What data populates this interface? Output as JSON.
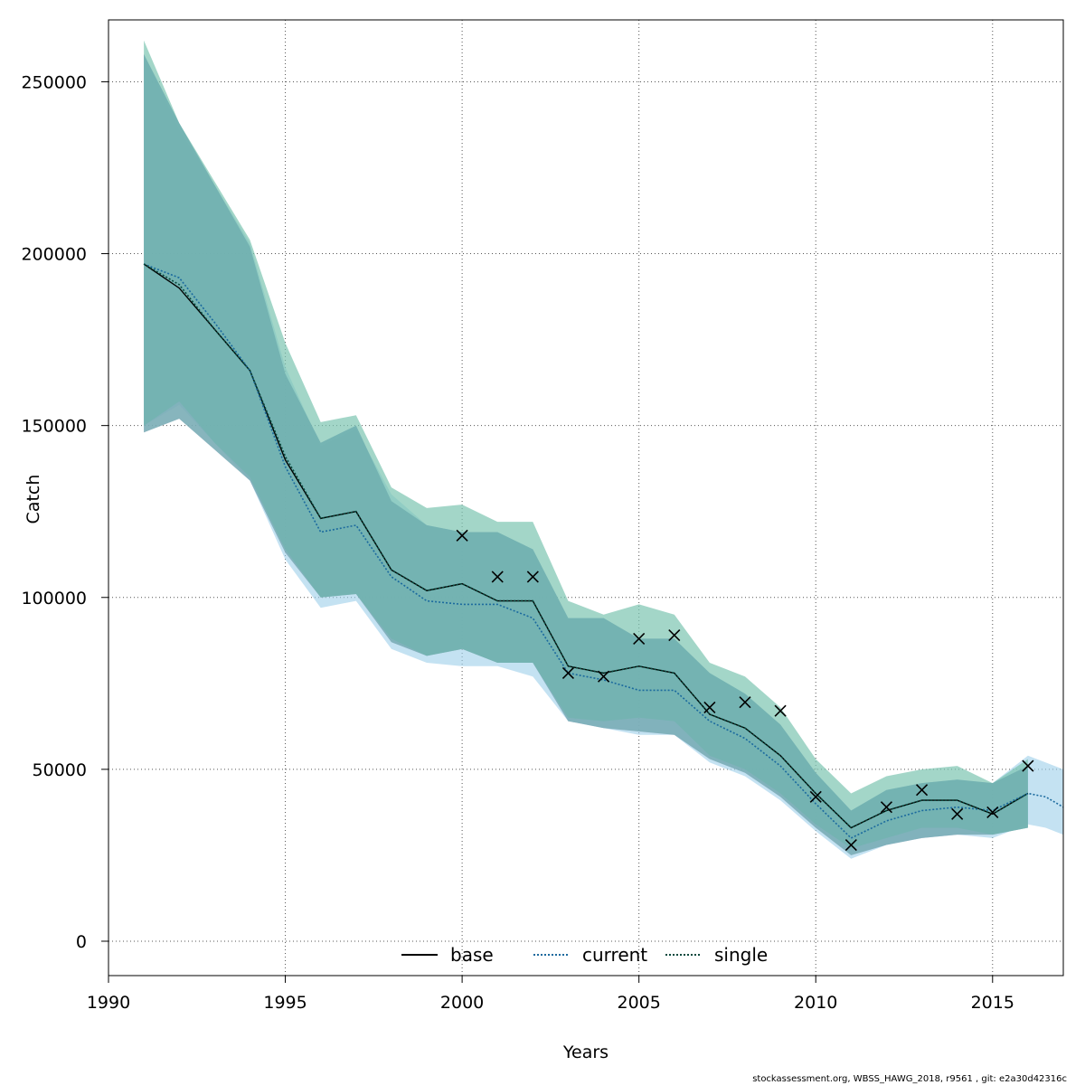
{
  "chart_data": {
    "type": "line",
    "xlabel": "Years",
    "ylabel": "Catch",
    "xlim": [
      1990,
      2017
    ],
    "ylim": [
      -10000,
      268000
    ],
    "x_ticks": [
      "1990",
      "1995",
      "2000",
      "2005",
      "2010",
      "2015"
    ],
    "y_ticks": [
      "0",
      "50000",
      "100000",
      "150000",
      "200000",
      "250000"
    ],
    "grid": true,
    "legend_position": "bottom-center",
    "legend": [
      {
        "label": "base",
        "style": "solid",
        "color": "#000000"
      },
      {
        "label": "current",
        "style": "dotted",
        "color": "#1b6a9e"
      },
      {
        "label": "single",
        "style": "dotted",
        "color": "#08493d"
      }
    ],
    "x": [
      1991,
      1992,
      1993,
      1994,
      1995,
      1996,
      1997,
      1998,
      1999,
      2000,
      2001,
      2002,
      2003,
      2004,
      2005,
      2006,
      2007,
      2008,
      2009,
      2010,
      2011,
      2012,
      2013,
      2014,
      2015,
      2016
    ],
    "series": [
      {
        "name": "base",
        "values": [
          197000,
          190000,
          178000,
          166000,
          140000,
          123000,
          125000,
          108000,
          102000,
          104000,
          99000,
          99000,
          80000,
          78000,
          80000,
          78000,
          66000,
          62000,
          54000,
          43000,
          33000,
          38000,
          41000,
          41000,
          37000,
          43000
        ],
        "lower": [
          148000,
          152000,
          143000,
          134000,
          113000,
          100000,
          101000,
          87000,
          83000,
          85000,
          81000,
          81000,
          64000,
          62000,
          61000,
          60000,
          53000,
          49000,
          42000,
          33000,
          25000,
          28000,
          30000,
          31000,
          31000,
          33000
        ],
        "upper": [
          258000,
          238000,
          220000,
          202000,
          165000,
          145000,
          150000,
          128000,
          121000,
          119000,
          119000,
          114000,
          94000,
          94000,
          88000,
          88000,
          78000,
          72000,
          63000,
          49000,
          38000,
          44000,
          46000,
          47000,
          46000,
          51000
        ]
      },
      {
        "name": "current",
        "values": [
          197000,
          193000,
          180000,
          166000,
          138000,
          119000,
          121000,
          106000,
          99000,
          98000,
          98000,
          94000,
          78000,
          76000,
          73000,
          73000,
          64000,
          59000,
          51000,
          40000,
          30000,
          35000,
          38000,
          39000,
          38000,
          43000,
          42000,
          39000
        ],
        "x": [
          1991,
          1992,
          1993,
          1994,
          1995,
          1996,
          1997,
          1998,
          1999,
          2000,
          2001,
          2002,
          2003,
          2004,
          2005,
          2006,
          2007,
          2008,
          2009,
          2010,
          2011,
          2012,
          2013,
          2014,
          2015,
          2016,
          2016.5,
          2017
        ],
        "lower": [
          150000,
          156000,
          145000,
          134000,
          111000,
          97000,
          99000,
          85000,
          81000,
          80000,
          80000,
          77000,
          64000,
          62000,
          60000,
          60000,
          52000,
          48000,
          41000,
          32000,
          24000,
          28000,
          30000,
          31000,
          30000,
          34000,
          33000,
          31000
        ],
        "upper": [
          258000,
          236000,
          220000,
          203000,
          167000,
          144000,
          149000,
          130000,
          121000,
          119000,
          119000,
          114000,
          94000,
          94000,
          88000,
          88000,
          78000,
          72000,
          63000,
          49000,
          38000,
          44000,
          46000,
          47000,
          46000,
          54000,
          52000,
          50000
        ]
      },
      {
        "name": "single",
        "values": [
          197000,
          191000,
          178000,
          166000,
          141000,
          123000,
          125000,
          108000,
          102000,
          104000,
          99000,
          99000,
          80000,
          78000,
          80000,
          78000,
          66000,
          62000,
          54000,
          43000,
          33000,
          38000,
          41000,
          41000,
          37000,
          43000
        ],
        "lower": [
          150000,
          157000,
          145000,
          135000,
          114000,
          100000,
          101000,
          88000,
          83000,
          85000,
          81000,
          81000,
          65000,
          64000,
          65000,
          64000,
          54000,
          50000,
          43000,
          34000,
          27000,
          30000,
          33000,
          33000,
          31000,
          33000
        ],
        "upper": [
          262000,
          238000,
          221000,
          204000,
          174000,
          151000,
          153000,
          132000,
          126000,
          127000,
          122000,
          122000,
          99000,
          95000,
          98000,
          95000,
          81000,
          77000,
          68000,
          53000,
          43000,
          48000,
          50000,
          51000,
          46000,
          53000
        ]
      }
    ],
    "observations": {
      "x": [
        2000,
        2001,
        2002,
        2003,
        2004,
        2005,
        2006,
        2007,
        2008,
        2009,
        2010,
        2011,
        2012,
        2013,
        2014,
        2015,
        2016
      ],
      "y": [
        118000,
        106000,
        106000,
        78000,
        77000,
        88000,
        89000,
        68000,
        69500,
        67000,
        42000,
        28000,
        39000,
        44000,
        37000,
        37500,
        51000
      ],
      "marker": "x"
    },
    "colors": {
      "band_base": "#c8a8dc",
      "band_current": "#9ccfe9",
      "band_single": "#7cc4b0",
      "band_overlap": "#6aaeae",
      "grid": "#555555"
    }
  },
  "footer": "stockassessment.org, WBSS_HAWG_2018, r9561 , git: e2a30d42316c"
}
